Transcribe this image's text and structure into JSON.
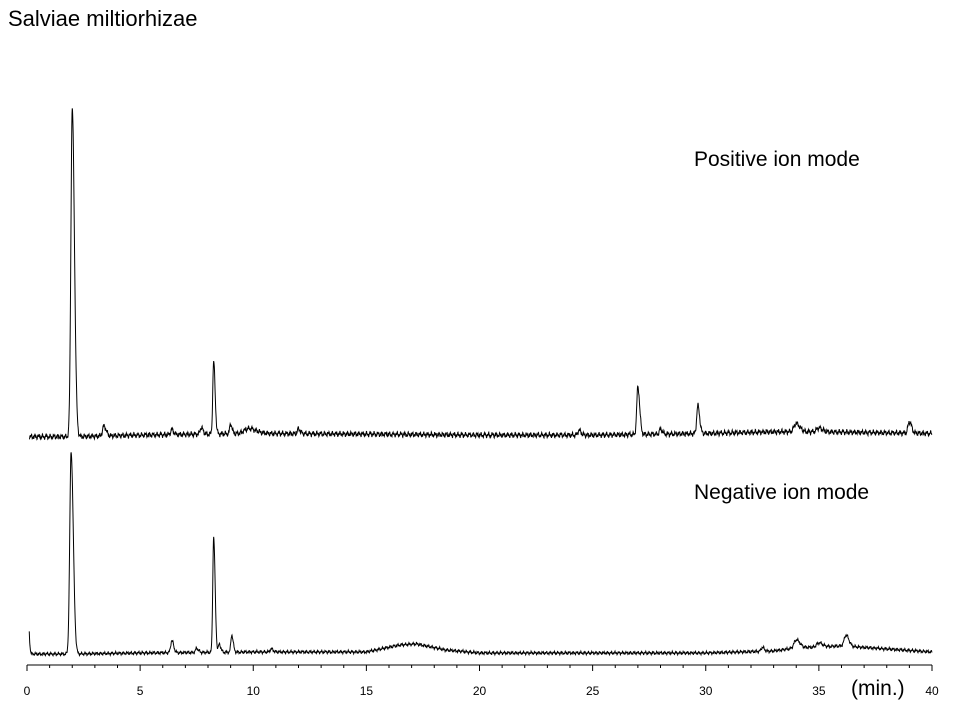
{
  "title": "Salviae miltiorhizae",
  "x_unit_label": "(min.)",
  "chart_data": {
    "type": "line",
    "title": "Salviae miltiorhizae",
    "xlabel": "(min.)",
    "ylabel": "",
    "xlim": [
      0,
      40
    ],
    "x_ticks": [
      0,
      5,
      10,
      15,
      20,
      25,
      30,
      35,
      40
    ],
    "grid": false,
    "line_color": "#000000",
    "series": [
      {
        "name": "Positive ion mode",
        "baseline_x": [
          0.1,
          2.0,
          5,
          10,
          15,
          20,
          25,
          30,
          33,
          35,
          40
        ],
        "baseline_y": [
          1.0,
          1.0,
          1.5,
          2.0,
          1.8,
          1.5,
          1.5,
          2.0,
          2.5,
          2.5,
          2.0
        ],
        "peaks": [
          {
            "rt": 2.0,
            "height": 100,
            "width": 0.06
          },
          {
            "rt": 3.4,
            "height": 3,
            "width": 0.06
          },
          {
            "rt": 6.4,
            "height": 1.5,
            "width": 0.05
          },
          {
            "rt": 7.7,
            "height": 2,
            "width": 0.05
          },
          {
            "rt": 8.25,
            "height": 22,
            "width": 0.04
          },
          {
            "rt": 9.0,
            "height": 3,
            "width": 0.04
          },
          {
            "rt": 9.8,
            "height": 1.5,
            "width": 0.2
          },
          {
            "rt": 12.0,
            "height": 1.5,
            "width": 0.05
          },
          {
            "rt": 24.4,
            "height": 1.5,
            "width": 0.05
          },
          {
            "rt": 27.0,
            "height": 14.5,
            "width": 0.05
          },
          {
            "rt": 28.0,
            "height": 1.5,
            "width": 0.05
          },
          {
            "rt": 29.65,
            "height": 8.5,
            "width": 0.05
          },
          {
            "rt": 34.0,
            "height": 2.5,
            "width": 0.1
          },
          {
            "rt": 35.0,
            "height": 1.2,
            "width": 0.1
          },
          {
            "rt": 39.0,
            "height": 3.5,
            "width": 0.06
          }
        ]
      },
      {
        "name": "Negative ion mode",
        "baseline_x": [
          0.1,
          2.0,
          5,
          10,
          15,
          16.5,
          17.2,
          18.5,
          20,
          25,
          30,
          33,
          34,
          36,
          38,
          40
        ],
        "baseline_y": [
          1.0,
          1.0,
          1.5,
          2.0,
          2.0,
          5.5,
          6.0,
          3.0,
          1.5,
          1.5,
          1.5,
          2.5,
          4.0,
          5.0,
          3.5,
          2.0
        ],
        "peaks": [
          {
            "rt": 0.05,
            "height": 19,
            "width": 0.03
          },
          {
            "rt": 1.95,
            "height": 100,
            "width": 0.06
          },
          {
            "rt": 6.4,
            "height": 6,
            "width": 0.05
          },
          {
            "rt": 7.5,
            "height": 2,
            "width": 0.05
          },
          {
            "rt": 8.25,
            "height": 57,
            "width": 0.04
          },
          {
            "rt": 8.5,
            "height": 4,
            "width": 0.04
          },
          {
            "rt": 9.05,
            "height": 8.5,
            "width": 0.04
          },
          {
            "rt": 10.8,
            "height": 1.5,
            "width": 0.05
          },
          {
            "rt": 32.5,
            "height": 2,
            "width": 0.05
          },
          {
            "rt": 34.0,
            "height": 4,
            "width": 0.1
          },
          {
            "rt": 35.0,
            "height": 2,
            "width": 0.1
          },
          {
            "rt": 36.2,
            "height": 5.5,
            "width": 0.08
          }
        ]
      }
    ]
  }
}
